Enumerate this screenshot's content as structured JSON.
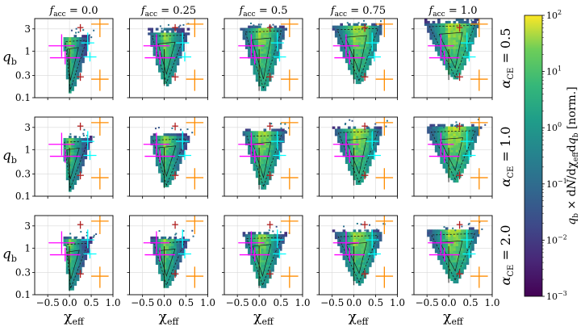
{
  "chart_data": {
    "type": "heatmap",
    "layout": {
      "rows": 3,
      "cols": 5
    },
    "x": {
      "label": "χ",
      "label_sub": "eff",
      "lim": [
        -0.8,
        1.0
      ],
      "ticks": [
        -0.5,
        0.0,
        0.5,
        1.0
      ],
      "tick_labels": [
        "−0.5",
        "0.0",
        "0.5",
        "1.0"
      ]
    },
    "y": {
      "label": "q",
      "label_sub": "b",
      "scale": "log",
      "lim": [
        0.1,
        5.0
      ],
      "ticks": [
        0.1,
        0.3,
        1,
        3
      ],
      "tick_labels": [
        "0.1",
        "0.3",
        "1",
        "3"
      ]
    },
    "column_titles": [
      {
        "sym": "f",
        "sub": "acc",
        "rest": " = 0.0"
      },
      {
        "sym": "f",
        "sub": "acc",
        "rest": " = 0.25"
      },
      {
        "sym": "f",
        "sub": "acc",
        "rest": " = 0.5"
      },
      {
        "sym": "f",
        "sub": "acc",
        "rest": " = 0.75"
      },
      {
        "sym": "f",
        "sub": "acc",
        "rest": " = 1.0"
      }
    ],
    "row_titles": [
      {
        "sym": "α",
        "sub": "CE",
        "rest": " = 0.5"
      },
      {
        "sym": "α",
        "sub": "CE",
        "rest": " = 1.0"
      },
      {
        "sym": "α",
        "sub": "CE",
        "rest": " = 2.0"
      }
    ],
    "f_acc": [
      0.0,
      0.25,
      0.5,
      0.75,
      1.0
    ],
    "alpha_ce": [
      0.5,
      1.0,
      2.0
    ],
    "colorbar": {
      "label": "q_b × dN/dχ_eff dq_b [norm.]",
      "label_parts": [
        {
          "t": "q",
          "sub": "b"
        },
        {
          "t": " × d"
        },
        {
          "t": "N",
          "it": true
        },
        {
          "t": "/dχ",
          "sub": "eff"
        },
        {
          "t": "d"
        },
        {
          "t": "q",
          "sub": "b"
        },
        {
          "t": " [norm.]"
        }
      ],
      "scale": "log",
      "range": [
        0.001,
        100
      ],
      "ticks": [
        0.001,
        0.01,
        0.1,
        1,
        10,
        100
      ],
      "tick_labels": [
        {
          "b": "10",
          "e": "−3"
        },
        {
          "b": "10",
          "e": "−2"
        },
        {
          "b": "10",
          "e": "−1"
        },
        {
          "b": "10",
          "e": "0"
        },
        {
          "b": "10",
          "e": "1"
        },
        {
          "b": "10",
          "e": "2"
        }
      ],
      "colormap": "viridis"
    },
    "observations": [
      {
        "name": "magenta-1",
        "color": "#ff00ff",
        "x": -0.18,
        "xerr": [
          0.3,
          0.3
        ],
        "y": 1.3,
        "yerr": [
          0.55,
          1.0
        ]
      },
      {
        "name": "magenta-2",
        "color": "#ff00ff",
        "x": -0.1,
        "xerr": [
          0.35,
          0.35
        ],
        "y": 0.72,
        "yerr": [
          0.2,
          0.3
        ]
      },
      {
        "name": "cyan-1",
        "color": "#00ffff",
        "x": 0.42,
        "xerr": [
          0.15,
          0.15
        ],
        "y": 1.5,
        "yerr": [
          0.5,
          1.0
        ]
      },
      {
        "name": "cyan-2",
        "color": "#00ffff",
        "x": 0.47,
        "xerr": [
          0.15,
          0.15
        ],
        "y": 0.75,
        "yerr": [
          0.15,
          0.2
        ]
      },
      {
        "name": "red-1",
        "color": "#b22222",
        "x": 0.25,
        "xerr": [
          0.07,
          0.07
        ],
        "y": 3.2,
        "yerr": [
          0.6,
          0.6
        ]
      },
      {
        "name": "red-2",
        "color": "#b22222",
        "x": 0.25,
        "xerr": [
          0.08,
          0.08
        ],
        "y": 0.28,
        "yerr": [
          0.05,
          0.06
        ]
      },
      {
        "name": "orange-1",
        "color": "#ff8c00",
        "x": 0.7,
        "xerr": [
          0.2,
          0.2
        ],
        "y": 3.8,
        "yerr": [
          1.8,
          1.1
        ]
      },
      {
        "name": "orange-2",
        "color": "#ff8c00",
        "x": 0.7,
        "xerr": [
          0.2,
          0.2
        ],
        "y": 0.25,
        "yerr": [
          0.11,
          0.15
        ]
      }
    ],
    "populations": [
      [
        {
          "tip": 0.13,
          "top": 2.0,
          "left": -0.12,
          "right": 0.46,
          "peak": 0.02,
          "spread": 0.18,
          "level": 0.6
        },
        {
          "tip": 0.18,
          "top": 2.6,
          "left": -0.35,
          "right": 0.55,
          "peak": 0.05,
          "spread": 0.25,
          "level": 0.65
        },
        {
          "tip": 0.14,
          "top": 3.2,
          "left": -0.4,
          "right": 0.6,
          "peak": 0.1,
          "spread": 0.3,
          "level": 0.7
        },
        {
          "tip": 0.2,
          "top": 3.6,
          "left": -0.48,
          "right": 0.65,
          "peak": 0.12,
          "spread": 0.35,
          "level": 0.72
        },
        {
          "tip": 0.24,
          "top": 4.2,
          "left": -0.55,
          "right": 0.7,
          "peak": 0.15,
          "spread": 0.4,
          "level": 0.75
        }
      ],
      [
        {
          "tip": 0.13,
          "top": 1.8,
          "left": -0.15,
          "right": 0.5,
          "peak": 0.02,
          "spread": 0.2,
          "level": 0.6
        },
        {
          "tip": 0.15,
          "top": 2.0,
          "left": -0.32,
          "right": 0.58,
          "peak": 0.05,
          "spread": 0.25,
          "level": 0.65
        },
        {
          "tip": 0.14,
          "top": 2.4,
          "left": -0.35,
          "right": 0.6,
          "peak": 0.1,
          "spread": 0.3,
          "level": 0.7
        },
        {
          "tip": 0.17,
          "top": 2.9,
          "left": -0.45,
          "right": 0.65,
          "peak": 0.12,
          "spread": 0.33,
          "level": 0.72
        },
        {
          "tip": 0.2,
          "top": 3.0,
          "left": -0.5,
          "right": 0.72,
          "peak": 0.15,
          "spread": 0.38,
          "level": 0.75
        }
      ],
      [
        {
          "tip": 0.12,
          "top": 1.5,
          "left": -0.1,
          "right": 0.5,
          "peak": 0.03,
          "spread": 0.18,
          "level": 0.6
        },
        {
          "tip": 0.14,
          "top": 1.6,
          "left": -0.3,
          "right": 0.55,
          "peak": 0.05,
          "spread": 0.22,
          "level": 0.65
        },
        {
          "tip": 0.14,
          "top": 2.0,
          "left": -0.35,
          "right": 0.6,
          "peak": 0.08,
          "spread": 0.28,
          "level": 0.68
        },
        {
          "tip": 0.16,
          "top": 2.2,
          "left": -0.45,
          "right": 0.65,
          "peak": 0.12,
          "spread": 0.32,
          "level": 0.7
        },
        {
          "tip": 0.18,
          "top": 2.4,
          "left": -0.5,
          "right": 0.7,
          "peak": 0.15,
          "spread": 0.36,
          "level": 0.72
        }
      ]
    ]
  }
}
